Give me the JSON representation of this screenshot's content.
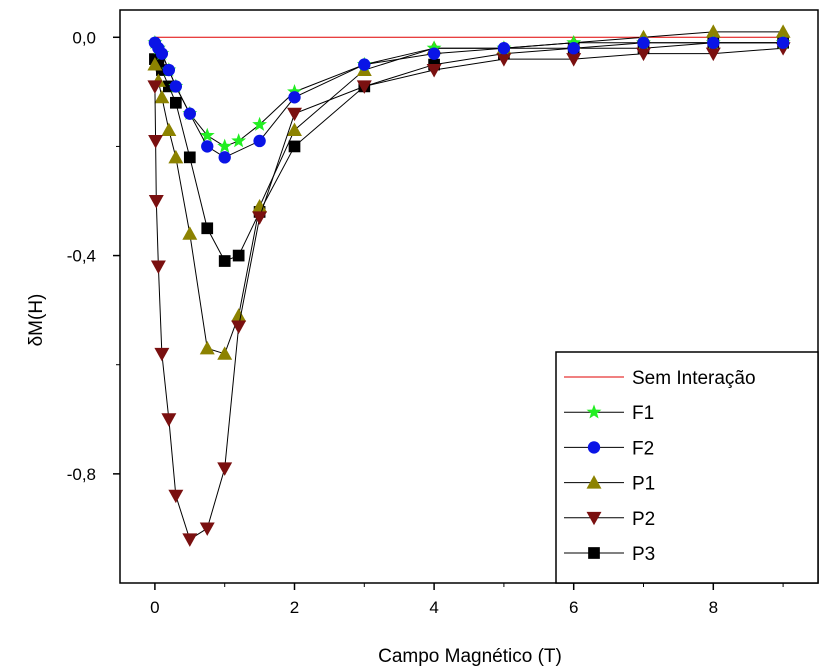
{
  "chart_data": {
    "type": "line",
    "xlabel": "Campo Magnético (T)",
    "ylabel": "δM(H)",
    "xlim": [
      -0.5,
      9.5
    ],
    "ylim": [
      -1.0,
      0.05
    ],
    "x_ticks": [
      0,
      2,
      4,
      6,
      8
    ],
    "x_tick_labels": [
      "0",
      "2",
      "4",
      "6",
      "8"
    ],
    "y_ticks": [
      0.0,
      -0.4,
      -0.8
    ],
    "y_tick_labels": [
      "0,0",
      "-0,4",
      "-0,8"
    ],
    "grid": false,
    "legend_position": "bottom-right",
    "series": [
      {
        "name": "Sem Interação",
        "marker": "none",
        "color": "#e00000",
        "x": [
          0,
          9
        ],
        "y": [
          0.0,
          0.0
        ]
      },
      {
        "name": "F1",
        "marker": "star",
        "color": "#22ee22",
        "x": [
          0,
          0.05,
          0.1,
          0.2,
          0.3,
          0.5,
          0.75,
          1.0,
          1.2,
          1.5,
          2,
          3,
          4,
          5,
          6,
          7,
          8,
          9
        ],
        "y": [
          -0.01,
          -0.02,
          -0.03,
          -0.06,
          -0.09,
          -0.14,
          -0.18,
          -0.2,
          -0.19,
          -0.16,
          -0.1,
          -0.05,
          -0.02,
          -0.02,
          -0.01,
          -0.01,
          -0.01,
          -0.01
        ]
      },
      {
        "name": "F2",
        "marker": "circle",
        "color": "#0a14e6",
        "x": [
          0,
          0.05,
          0.1,
          0.2,
          0.3,
          0.5,
          0.75,
          1.0,
          1.5,
          2,
          3,
          4,
          5,
          6,
          7,
          8,
          9
        ],
        "y": [
          -0.01,
          -0.02,
          -0.03,
          -0.06,
          -0.09,
          -0.14,
          -0.2,
          -0.22,
          -0.19,
          -0.11,
          -0.05,
          -0.03,
          -0.02,
          -0.02,
          -0.01,
          -0.01,
          -0.01
        ]
      },
      {
        "name": "P1",
        "marker": "triangle-up",
        "color": "#8c8200",
        "x": [
          0,
          0.05,
          0.1,
          0.2,
          0.3,
          0.5,
          0.75,
          1.0,
          1.2,
          1.5,
          2,
          3,
          4,
          5,
          6,
          7,
          8,
          9
        ],
        "y": [
          -0.05,
          -0.08,
          -0.11,
          -0.17,
          -0.22,
          -0.36,
          -0.57,
          -0.58,
          -0.51,
          -0.31,
          -0.17,
          -0.06,
          -0.02,
          -0.02,
          -0.01,
          0.0,
          0.01,
          0.01
        ]
      },
      {
        "name": "P2",
        "marker": "triangle-down",
        "color": "#7a1010",
        "x": [
          0,
          0.01,
          0.02,
          0.05,
          0.1,
          0.2,
          0.3,
          0.5,
          0.75,
          1.0,
          1.2,
          1.5,
          2,
          3,
          4,
          5,
          6,
          7,
          8,
          9
        ],
        "y": [
          -0.09,
          -0.19,
          -0.3,
          -0.42,
          -0.58,
          -0.7,
          -0.84,
          -0.92,
          -0.9,
          -0.79,
          -0.53,
          -0.33,
          -0.14,
          -0.09,
          -0.06,
          -0.04,
          -0.04,
          -0.03,
          -0.03,
          -0.02
        ]
      },
      {
        "name": "P3",
        "marker": "square",
        "color": "#000000",
        "x": [
          0,
          0.05,
          0.1,
          0.2,
          0.3,
          0.5,
          0.75,
          1.0,
          1.2,
          1.5,
          2,
          3,
          4,
          5,
          6,
          7,
          8,
          9
        ],
        "y": [
          -0.04,
          -0.05,
          -0.06,
          -0.09,
          -0.12,
          -0.22,
          -0.35,
          -0.41,
          -0.4,
          -0.32,
          -0.2,
          -0.09,
          -0.05,
          -0.03,
          -0.02,
          -0.02,
          -0.01,
          -0.01
        ]
      }
    ]
  }
}
